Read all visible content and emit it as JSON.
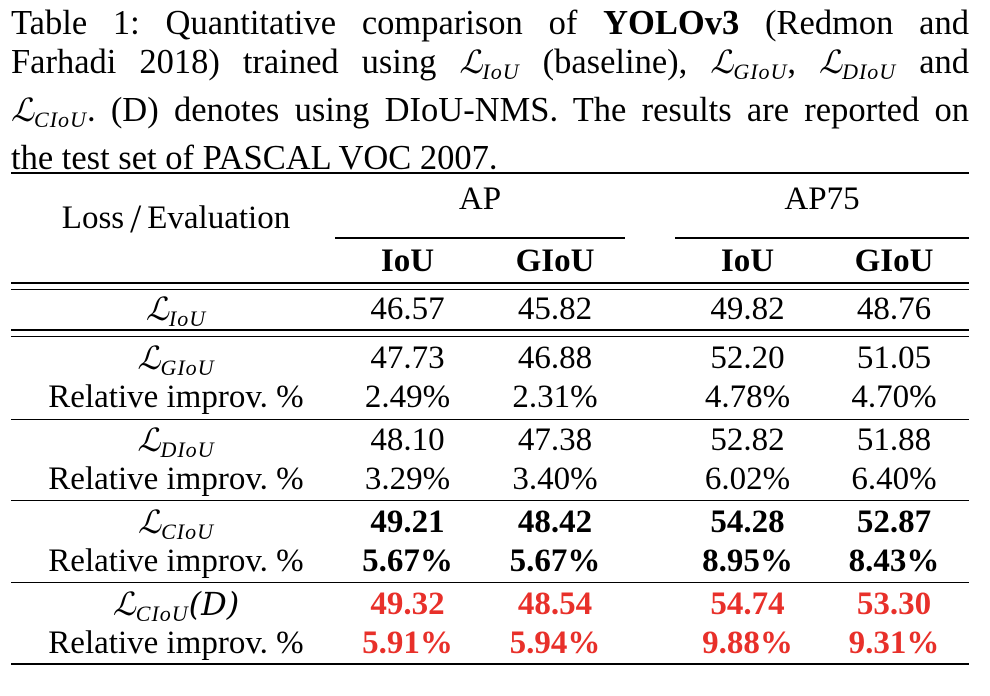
{
  "caption": {
    "line1_pre": "Table 1: Quantitative comparison of ",
    "model": "YOLOv3",
    "line1_post": " (Redmon and",
    "line2_a": "Farhadi 2018) trained using ",
    "line2_b": " (baseline), ",
    "line2_c": ", ",
    "line2_d": " and",
    "line3_b": ". (D) denotes using DIoU-NMS. The results are reported on",
    "line4": "the test set of PASCAL VOC 2007.",
    "loss_symbol": "ℒ",
    "sub_iou": "IoU",
    "sub_giou": "GIoU",
    "sub_diou": "DIoU",
    "sub_ciou": "CIoU"
  },
  "table": {
    "corner_left": "Loss",
    "corner_slash": "/",
    "corner_right": "Evaluation",
    "group_ap": "AP",
    "group_ap75": "AP75",
    "col_iou": "IoU",
    "col_giou": "GIoU",
    "rows": {
      "iou": {
        "label_sym": "ℒ",
        "label_sub": "IoU",
        "vals": [
          "46.57",
          "45.82",
          "49.82",
          "48.76"
        ]
      },
      "giou": {
        "label_sym": "ℒ",
        "label_sub": "GIoU",
        "vals": [
          "47.73",
          "46.88",
          "52.20",
          "51.05"
        ]
      },
      "giou_rel": {
        "label": "Relative improv. %",
        "vals": [
          "2.49%",
          "2.31%",
          "4.78%",
          "4.70%"
        ]
      },
      "diou": {
        "label_sym": "ℒ",
        "label_sub": "DIoU",
        "vals": [
          "48.10",
          "47.38",
          "52.82",
          "51.88"
        ]
      },
      "diou_rel": {
        "label": "Relative improv. %",
        "vals": [
          "3.29%",
          "3.40%",
          "6.02%",
          "6.40%"
        ]
      },
      "ciou": {
        "label_sym": "ℒ",
        "label_sub": "CIoU",
        "vals": [
          "49.21",
          "48.42",
          "54.28",
          "52.87"
        ]
      },
      "ciou_rel": {
        "label": "Relative improv. %",
        "vals": [
          "5.67%",
          "5.67%",
          "8.95%",
          "8.43%"
        ]
      },
      "ciou_d": {
        "label_sym": "ℒ",
        "label_sub": "CIoU",
        "label_suffix": "(D)",
        "vals": [
          "49.32",
          "48.54",
          "54.74",
          "53.30"
        ]
      },
      "ciou_d_rel": {
        "label": "Relative improv. %",
        "vals": [
          "5.91%",
          "5.94%",
          "9.88%",
          "9.31%"
        ]
      }
    },
    "highlight_color": "#e8302a"
  }
}
